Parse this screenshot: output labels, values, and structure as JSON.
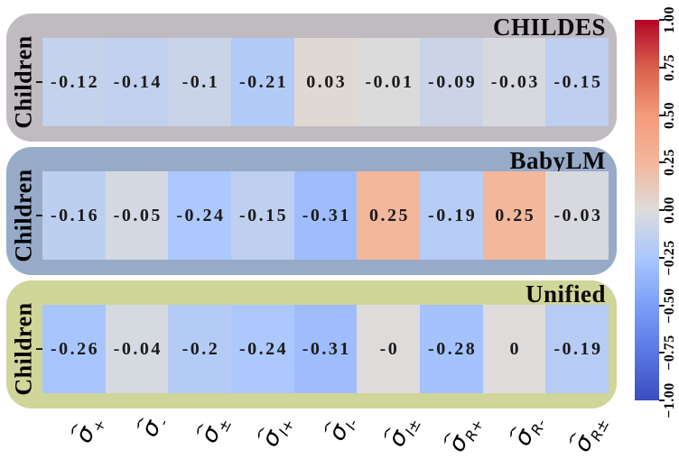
{
  "figure": {
    "background": "#ffffff"
  },
  "panels": [
    {
      "title": "CHILDES",
      "row_label": "Children",
      "bg_color": "#c0bac1",
      "values_display": [
        "-0.12",
        "-0.14",
        "-0.1",
        "-0.21",
        "0.03",
        "-0.01",
        "-0.09",
        "-0.03",
        "-0.15"
      ],
      "values": [
        -0.12,
        -0.14,
        -0.1,
        -0.21,
        0.03,
        -0.01,
        -0.09,
        -0.03,
        -0.15
      ]
    },
    {
      "title": "BabyLM",
      "row_label": "Children",
      "bg_color": "#97abc9",
      "values_display": [
        "-0.16",
        "-0.05",
        "-0.24",
        "-0.15",
        "-0.31",
        "0.25",
        "-0.19",
        "0.25",
        "-0.03"
      ],
      "values": [
        -0.16,
        -0.05,
        -0.24,
        -0.15,
        -0.31,
        0.25,
        -0.19,
        0.25,
        -0.03
      ]
    },
    {
      "title": "Unified",
      "row_label": "Children",
      "bg_color": "#d0d59a",
      "values_display": [
        "-0.26",
        "-0.04",
        "-0.2",
        "-0.24",
        "-0.31",
        "-0",
        "-0.28",
        "0",
        "-0.19"
      ],
      "values": [
        -0.26,
        -0.04,
        -0.2,
        -0.24,
        -0.31,
        0,
        -0.28,
        0,
        -0.19
      ]
    }
  ],
  "x_axis": {
    "labels": [
      {
        "hat": "ˆ",
        "base": "σ",
        "sub": "+"
      },
      {
        "hat": "ˆ",
        "base": "σ",
        "sub": "-"
      },
      {
        "hat": "ˆ",
        "base": "σ",
        "sub": "±"
      },
      {
        "hat": "ˆ",
        "base": "σ",
        "sub": "I+"
      },
      {
        "hat": "ˆ",
        "base": "σ",
        "sub": "I-"
      },
      {
        "hat": "ˆ",
        "base": "σ",
        "sub": "I±"
      },
      {
        "hat": "ˆ",
        "base": "σ",
        "sub": "R+"
      },
      {
        "hat": "ˆ",
        "base": "σ",
        "sub": "R-"
      },
      {
        "hat": "ˆ",
        "base": "σ",
        "sub": "R±"
      }
    ]
  },
  "colorbar": {
    "tick_labels": [
      "1.00",
      "0.75",
      "0.50",
      "0.25",
      "0.00",
      "−0.25",
      "−0.50",
      "−0.75",
      "−1.00"
    ],
    "tick_values": [
      1,
      0.75,
      0.5,
      0.25,
      0,
      -0.25,
      -0.5,
      -0.75,
      -1
    ],
    "vmin": -1,
    "vmax": 1,
    "colormap_name": "coolwarm",
    "colormap_stops": [
      {
        "t": 0.0,
        "color": "#3b4cc0"
      },
      {
        "t": 0.125,
        "color": "#5977e3"
      },
      {
        "t": 0.25,
        "color": "#7b9ff9"
      },
      {
        "t": 0.375,
        "color": "#aac7fd"
      },
      {
        "t": 0.5,
        "color": "#dddcdb"
      },
      {
        "t": 0.625,
        "color": "#f3b79b"
      },
      {
        "t": 0.75,
        "color": "#f49a7b"
      },
      {
        "t": 0.875,
        "color": "#d9604c"
      },
      {
        "t": 1.0,
        "color": "#b40426"
      }
    ]
  },
  "chart_data": [
    {
      "type": "heatmap",
      "title": "CHILDES",
      "rows": [
        "Children"
      ],
      "columns": [
        "σ̂+",
        "σ̂−",
        "σ̂±",
        "σ̂I+",
        "σ̂I−",
        "σ̂I±",
        "σ̂R+",
        "σ̂R−",
        "σ̂R±"
      ],
      "values": [
        [
          -0.12,
          -0.14,
          -0.1,
          -0.21,
          0.03,
          -0.01,
          -0.09,
          -0.03,
          -0.15
        ]
      ],
      "vmin": -1,
      "vmax": 1,
      "colormap": "coolwarm",
      "legend_position": "right-colorbar"
    },
    {
      "type": "heatmap",
      "title": "BabyLM",
      "rows": [
        "Children"
      ],
      "columns": [
        "σ̂+",
        "σ̂−",
        "σ̂±",
        "σ̂I+",
        "σ̂I−",
        "σ̂I±",
        "σ̂R+",
        "σ̂R−",
        "σ̂R±"
      ],
      "values": [
        [
          -0.16,
          -0.05,
          -0.24,
          -0.15,
          -0.31,
          0.25,
          -0.19,
          0.25,
          -0.03
        ]
      ],
      "vmin": -1,
      "vmax": 1,
      "colormap": "coolwarm",
      "legend_position": "right-colorbar"
    },
    {
      "type": "heatmap",
      "title": "Unified",
      "rows": [
        "Children"
      ],
      "columns": [
        "σ̂+",
        "σ̂−",
        "σ̂±",
        "σ̂I+",
        "σ̂I−",
        "σ̂I±",
        "σ̂R+",
        "σ̂R−",
        "σ̂R±"
      ],
      "values": [
        [
          -0.26,
          -0.04,
          -0.2,
          -0.24,
          -0.31,
          0,
          -0.28,
          0,
          -0.19
        ]
      ],
      "vmin": -1,
      "vmax": 1,
      "colormap": "coolwarm",
      "legend_position": "right-colorbar"
    }
  ]
}
